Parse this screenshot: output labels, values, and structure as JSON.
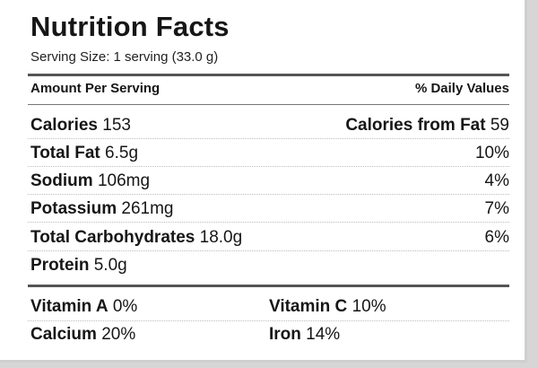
{
  "title": "Nutrition Facts",
  "serving_size": "Serving Size: 1 serving (33.0 g)",
  "header": {
    "left": "Amount Per Serving",
    "right": "% Daily Values"
  },
  "calories": {
    "label": "Calories",
    "value": "153",
    "fat_label": "Calories from Fat",
    "fat_value": "59"
  },
  "nutrients": [
    {
      "label": "Total Fat",
      "amount": "6.5g",
      "dv": "10%"
    },
    {
      "label": "Sodium",
      "amount": "106mg",
      "dv": "4%"
    },
    {
      "label": "Potassium",
      "amount": "261mg",
      "dv": "7%"
    },
    {
      "label": "Total Carbohydrates",
      "amount": "18.0g",
      "dv": "6%"
    },
    {
      "label": "Protein",
      "amount": "5.0g",
      "dv": ""
    }
  ],
  "vitamins": [
    {
      "label": "Vitamin A",
      "value": "0%"
    },
    {
      "label": "Vitamin C",
      "value": "10%"
    },
    {
      "label": "Calcium",
      "value": "20%"
    },
    {
      "label": "Iron",
      "value": "14%"
    }
  ]
}
